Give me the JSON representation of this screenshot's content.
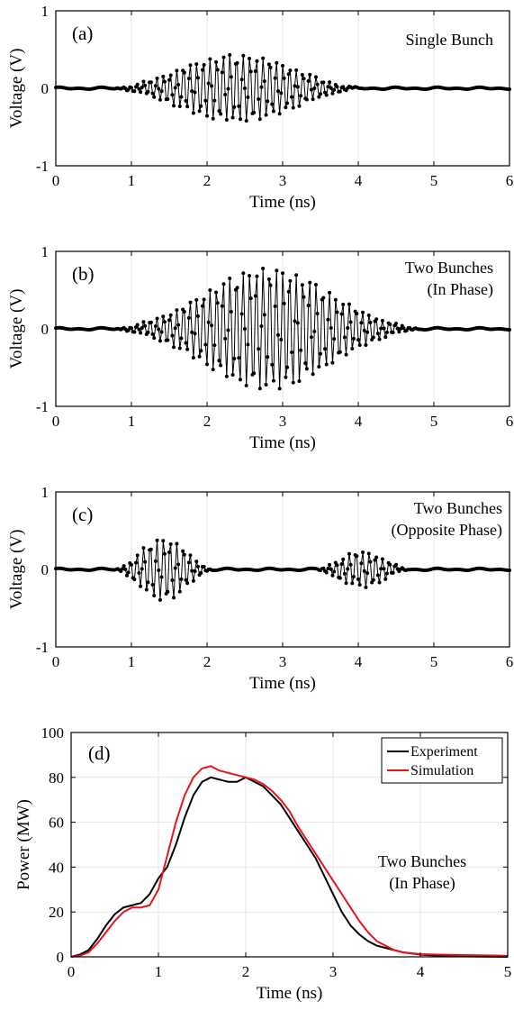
{
  "chart_data": [
    {
      "type": "line",
      "panel_label": "(a)",
      "annotation": [
        "Single Bunch"
      ],
      "xlabel": "Time (ns)",
      "ylabel": "Voltage (V)",
      "xlim": [
        0,
        6
      ],
      "ylim": [
        -1,
        1
      ],
      "xticks": [
        0,
        1,
        2,
        3,
        4,
        5,
        6
      ],
      "yticks": [
        -1,
        0,
        1
      ],
      "grid": true,
      "signal": {
        "f_ghz": 11.4,
        "sample_ns": 0.02,
        "markers": "dots",
        "noise_amp": 0.015,
        "envelopes": [
          {
            "t_start": 0.7,
            "t_end": 4.1,
            "amp": 0.43
          }
        ]
      }
    },
    {
      "type": "line",
      "panel_label": "(b)",
      "annotation": [
        "Two Bunches",
        "(In Phase)"
      ],
      "xlabel": "Time (ns)",
      "ylabel": "Voltage (V)",
      "xlim": [
        0,
        6
      ],
      "ylim": [
        -1,
        1
      ],
      "xticks": [
        0,
        1,
        2,
        3,
        4,
        5,
        6
      ],
      "yticks": [
        -1,
        0,
        1
      ],
      "grid": true,
      "signal": {
        "f_ghz": 11.4,
        "sample_ns": 0.02,
        "markers": "dots",
        "noise_amp": 0.015,
        "envelopes": [
          {
            "t_start": 0.7,
            "t_end": 4.1,
            "amp": 0.45
          },
          {
            "t_start": 1.5,
            "t_end": 4.9,
            "amp": 0.45
          }
        ]
      }
    },
    {
      "type": "line",
      "panel_label": "(c)",
      "annotation": [
        "Two Bunches",
        "(Opposite Phase)"
      ],
      "xlabel": "Time (ns)",
      "ylabel": "Voltage (V)",
      "xlim": [
        0,
        6
      ],
      "ylim": [
        -1,
        1
      ],
      "xticks": [
        0,
        1,
        2,
        3,
        4,
        5,
        6
      ],
      "yticks": [
        -1,
        0,
        1
      ],
      "grid": true,
      "signal": {
        "f_ghz": 11.4,
        "sample_ns": 0.02,
        "markers": "dots",
        "noise_amp": 0.015,
        "envelopes": [
          {
            "t_start": 0.75,
            "t_end": 2.1,
            "amp": 0.4
          },
          {
            "t_start": 3.4,
            "t_end": 4.7,
            "amp": 0.23
          }
        ]
      }
    },
    {
      "type": "line",
      "panel_label": "(d)",
      "annotation": [
        "Two Bunches",
        "(In Phase)"
      ],
      "xlabel": "Time (ns)",
      "ylabel": "Power (MW)",
      "xlim": [
        0,
        5
      ],
      "ylim": [
        0,
        100
      ],
      "xticks": [
        0,
        1,
        2,
        3,
        4,
        5
      ],
      "yticks": [
        0,
        20,
        40,
        60,
        80,
        100
      ],
      "grid": true,
      "legend": "top-right",
      "series": [
        {
          "name": "Experiment",
          "color": "#000000",
          "x": [
            0,
            0.1,
            0.2,
            0.3,
            0.4,
            0.5,
            0.6,
            0.7,
            0.8,
            0.9,
            1.0,
            1.1,
            1.2,
            1.3,
            1.4,
            1.5,
            1.6,
            1.7,
            1.8,
            1.9,
            2.0,
            2.1,
            2.2,
            2.3,
            2.4,
            2.5,
            2.6,
            2.7,
            2.8,
            2.9,
            3.0,
            3.1,
            3.2,
            3.3,
            3.4,
            3.5,
            3.6,
            3.8,
            4.0,
            4.2,
            4.5,
            5.0
          ],
          "y": [
            0,
            1,
            3,
            8,
            14,
            19,
            22,
            23,
            24,
            28,
            35,
            40,
            50,
            62,
            72,
            78,
            80,
            79,
            78,
            78,
            80,
            78,
            76,
            72,
            68,
            62,
            56,
            50,
            44,
            36,
            28,
            20,
            14,
            10,
            7,
            5,
            4,
            2,
            1,
            0.5,
            0.2,
            0
          ]
        },
        {
          "name": "Simulation",
          "color": "#e8141b",
          "x": [
            0,
            0.1,
            0.2,
            0.3,
            0.4,
            0.5,
            0.6,
            0.7,
            0.8,
            0.9,
            1.0,
            1.1,
            1.2,
            1.3,
            1.4,
            1.5,
            1.6,
            1.7,
            1.8,
            1.9,
            2.0,
            2.1,
            2.2,
            2.3,
            2.4,
            2.5,
            2.6,
            2.7,
            2.8,
            2.9,
            3.0,
            3.1,
            3.2,
            3.3,
            3.4,
            3.5,
            3.6,
            3.7,
            3.8,
            4.0,
            4.2,
            4.5,
            5.0
          ],
          "y": [
            0,
            0.5,
            2,
            6,
            11,
            16,
            20,
            22,
            22,
            23,
            30,
            45,
            60,
            72,
            80,
            84,
            85,
            83,
            82,
            81,
            80,
            79,
            77,
            74,
            70,
            65,
            58,
            52,
            46,
            40,
            34,
            28,
            22,
            16,
            11,
            7,
            5,
            3,
            2,
            1.2,
            1,
            0.8,
            0.5
          ]
        }
      ]
    }
  ]
}
